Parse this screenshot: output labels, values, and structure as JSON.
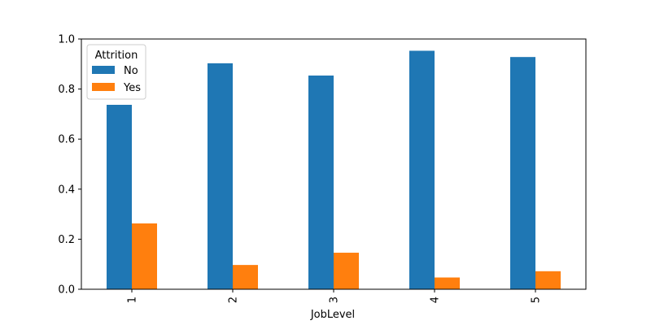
{
  "chart_data": {
    "type": "bar",
    "categories": [
      "1",
      "2",
      "3",
      "4",
      "5"
    ],
    "series": [
      {
        "name": "No",
        "color": "#1f77b4",
        "values": [
          0.737,
          0.903,
          0.854,
          0.953,
          0.928
        ]
      },
      {
        "name": "Yes",
        "color": "#ff7f0e",
        "values": [
          0.263,
          0.097,
          0.146,
          0.047,
          0.072
        ]
      }
    ],
    "xlabel": "JobLevel",
    "ylabel": "",
    "ylim": [
      0.0,
      1.0
    ],
    "yticks": [
      "0.0",
      "0.2",
      "0.4",
      "0.6",
      "0.8",
      "1.0"
    ],
    "legend": {
      "title": "Attrition",
      "placement": "top-left"
    },
    "grid": false
  }
}
